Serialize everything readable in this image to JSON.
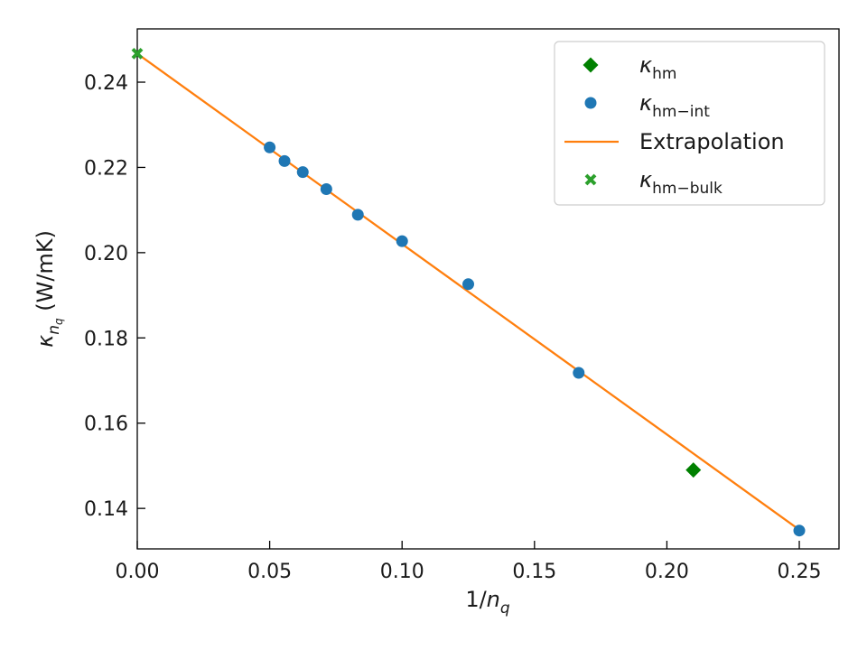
{
  "chart_data": {
    "type": "scatter",
    "xlabel": "1/n_q",
    "ylabel": "κ_{n_q} (W/mK)",
    "xlim": [
      0.0,
      0.265
    ],
    "ylim": [
      0.1305,
      0.2525
    ],
    "xticks": [
      0.0,
      0.05,
      0.1,
      0.15,
      0.2,
      0.25
    ],
    "yticks": [
      0.14,
      0.16,
      0.18,
      0.2,
      0.22,
      0.24
    ],
    "xtick_labels": [
      "0.00",
      "0.05",
      "0.10",
      "0.15",
      "0.20",
      "0.25"
    ],
    "ytick_labels": [
      "0.14",
      "0.16",
      "0.18",
      "0.20",
      "0.22",
      "0.24"
    ],
    "grid": false,
    "legend_position": "top-right",
    "series": [
      {
        "key": "hm",
        "name": "κ_hm",
        "kind": "scatter",
        "marker": "diamond",
        "color": "#008000",
        "points": [
          [
            0.21,
            0.149
          ]
        ]
      },
      {
        "key": "hm_int",
        "name": "κ_hm−int",
        "kind": "scatter",
        "marker": "circle",
        "color": "#1f77b4",
        "points": [
          [
            0.05,
            0.2247
          ],
          [
            0.0556,
            0.2215
          ],
          [
            0.0625,
            0.2189
          ],
          [
            0.0714,
            0.2149
          ],
          [
            0.0833,
            0.2089
          ],
          [
            0.1,
            0.2027
          ],
          [
            0.125,
            0.1926
          ],
          [
            0.1667,
            0.1718
          ],
          [
            0.25,
            0.1348
          ]
        ]
      },
      {
        "key": "extrapolation",
        "name": "Extrapolation",
        "kind": "line",
        "color": "#ff7f0e",
        "points": [
          [
            0.0,
            0.2467
          ],
          [
            0.25,
            0.135
          ]
        ]
      },
      {
        "key": "hm_bulk",
        "name": "κ_hm−bulk",
        "kind": "scatter",
        "marker": "x",
        "color": "#2ca02c",
        "points": [
          [
            0.0,
            0.2467
          ]
        ]
      }
    ]
  }
}
